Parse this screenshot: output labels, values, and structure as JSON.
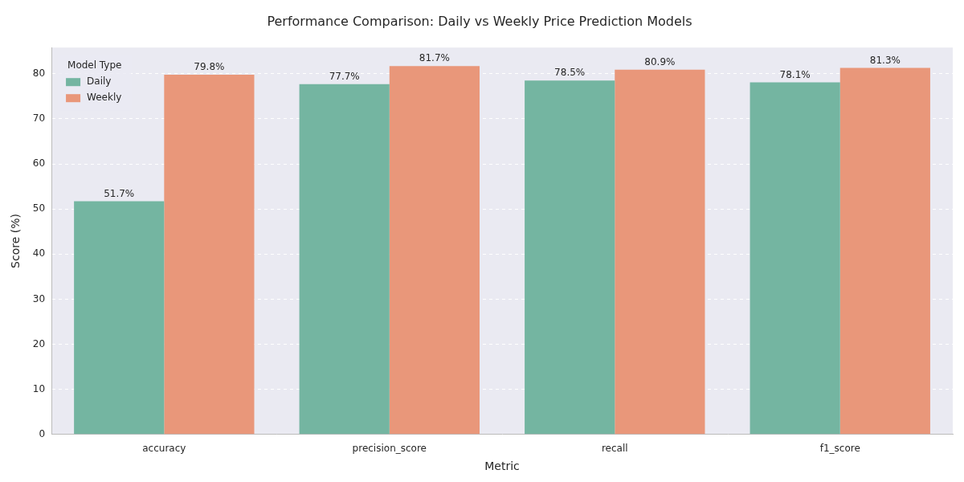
{
  "chart_data": {
    "type": "bar",
    "title": "Performance Comparison: Daily vs Weekly Price Prediction Models",
    "x_label": "Metric",
    "y_label": "Score (%)",
    "legend_title": "Model Type",
    "categories": [
      "accuracy",
      "precision_score",
      "recall",
      "f1_score"
    ],
    "series": [
      {
        "name": "Daily",
        "color": "#74b5a1",
        "values": [
          51.7,
          77.7,
          78.5,
          78.1
        ],
        "value_labels": [
          "51.7%",
          "77.7%",
          "78.5%",
          "78.1%"
        ]
      },
      {
        "name": "Weekly",
        "color": "#e9977a",
        "values": [
          79.8,
          81.7,
          80.9,
          81.3
        ],
        "value_labels": [
          "79.8%",
          "81.7%",
          "80.9%",
          "81.3%"
        ]
      }
    ],
    "ylim": [
      0,
      85.8
    ],
    "yticks": [
      0,
      10,
      20,
      30,
      40,
      50,
      60,
      70,
      80
    ],
    "grid": true,
    "legend": "upper left",
    "data_labels": true
  }
}
